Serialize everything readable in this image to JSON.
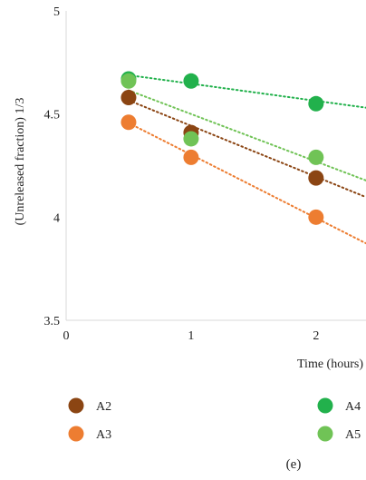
{
  "chart_data": {
    "type": "scatter",
    "xlabel": "Time (hours)",
    "ylabel": "(Unreleased fraction) 1/3",
    "xlim": [
      0,
      2.4
    ],
    "ylim": [
      3.5,
      5
    ],
    "x_ticks": [
      "0",
      "1",
      "2"
    ],
    "y_ticks": [
      "3.5",
      "4",
      "4.5",
      "5"
    ],
    "trendlines": "dotted linear, one per series",
    "legend_position": "bottom",
    "grid": false,
    "series": [
      {
        "name": "A2",
        "color": "#8B4513",
        "x": [
          0.5,
          1,
          2
        ],
        "y": [
          4.58,
          4.41,
          4.19
        ],
        "trend": {
          "slope": -0.247,
          "intercept": 4.69
        }
      },
      {
        "name": "A3",
        "color": "#ED7D31",
        "x": [
          0.5,
          1,
          2
        ],
        "y": [
          4.46,
          4.29,
          4.0
        ],
        "trend": {
          "slope": -0.307,
          "intercept": 4.61
        }
      },
      {
        "name": "A4",
        "color": "#22B14C",
        "x": [
          0.5,
          1,
          2
        ],
        "y": [
          4.67,
          4.66,
          4.55
        ],
        "trend": {
          "slope": -0.083,
          "intercept": 4.73
        }
      },
      {
        "name": "A5",
        "color": "#70C356",
        "x": [
          0.5,
          1,
          2
        ],
        "y": [
          4.66,
          4.38,
          4.29
        ],
        "trend": {
          "slope": -0.23,
          "intercept": 4.73
        }
      }
    ]
  },
  "panel_label": "(e)"
}
